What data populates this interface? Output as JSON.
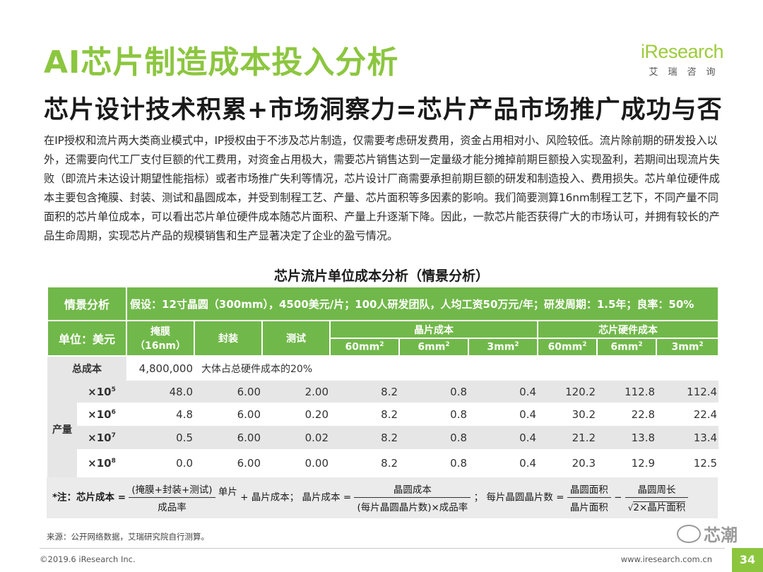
{
  "header": {
    "title": "AI芯片制造成本投入分析",
    "subtitle": "芯片设计技术积累+市场洞察力=芯片产品市场推广成功与否",
    "logo_main": "iResearch",
    "logo_sub": "艾瑞咨询"
  },
  "paragraph": "在IP授权和流片两大类商业模式中，IP授权由于不涉及芯片制造，仅需要考虑研发费用，资金占用相对小、风险较低。流片除前期的研发投入以外，还需要向代工厂支付巨额的代工费用，对资金占用极大，需要芯片销售达到一定量级才能分摊掉前期巨额投入实现盈利，若期间出现流片失败（即流片未达设计期望性能指标）或者市场推广失利等情况，芯片设计厂商需要承担前期巨额的研发和制造投入、费用损失。芯片单位硬件成本主要包含掩膜、封装、测试和晶圆成本，并受到制程工艺、产量、芯片面积等多因素的影响。我们简要测算16nm制程工艺下，不同产量不同面积的芯片单位成本，可以看出芯片单位硬件成本随芯片面积、产量上升逐渐下降。因此，一款芯片能否获得广大的市场认可，并拥有较长的产品生命周期，实现芯片产品的规模销售和生产显著决定了企业的盈亏情况。",
  "table": {
    "title": "芯片流片单位成本分析（情景分析）",
    "scenario_label": "情景分析",
    "assumption": "假设：12寸晶圆（300mm），4500美元/片；100人研发团队，人均工资50万元/年；研发周期：1.5年；良率：50%",
    "unit_label": "单位：美元",
    "col_mask": "掩膜\n（16nm）",
    "col_mask_line1": "掩膜",
    "col_mask_line2": "（16nm）",
    "col_package": "封装",
    "col_test": "测试",
    "col_wafer_cost": "晶片成本",
    "col_hw_cost": "芯片硬件成本",
    "areas": [
      "60mm",
      "6mm",
      "3mm",
      "60mm",
      "6mm",
      "3mm"
    ],
    "area_sup": "2",
    "total_label": "总成本",
    "total_value": "4,800,000",
    "total_note": "大体占总硬件成本的20%",
    "volume_label": "产量",
    "rows": [
      {
        "volume": "×10",
        "exp": "5",
        "values": [
          "48.0",
          "6.00",
          "2.00",
          "8.2",
          "0.8",
          "0.4",
          "120.2",
          "112.8",
          "112.4"
        ]
      },
      {
        "volume": "×10",
        "exp": "6",
        "values": [
          "4.8",
          "6.00",
          "0.20",
          "8.2",
          "0.8",
          "0.4",
          "30.2",
          "22.8",
          "22.4"
        ]
      },
      {
        "volume": "×10",
        "exp": "7",
        "values": [
          "0.5",
          "6.00",
          "0.02",
          "8.2",
          "0.8",
          "0.4",
          "21.2",
          "13.8",
          "13.4"
        ]
      },
      {
        "volume": "×10",
        "exp": "8",
        "values": [
          "0.0",
          "6.00",
          "0.00",
          "8.2",
          "0.8",
          "0.4",
          "20.3",
          "12.9",
          "12.5"
        ]
      }
    ]
  },
  "formula": {
    "note_label": "*注：芯片成本 =",
    "f1_num": "(掩膜+封装+测试)",
    "f1_den": "成品率",
    "f1_tail": "单片",
    "plus": "+ 晶片成本；",
    "wafer_label": "晶片成本 =",
    "f2_num": "晶圆成本",
    "f2_den": "(每片晶圆晶片数)×成品率",
    "sep": "；",
    "per_wafer_label": "每片晶圆晶片数 =",
    "f3_num": "晶圆面积",
    "f3_den": "晶片面积",
    "minus": "−",
    "f4_num": "晶圆周长",
    "f4_den": "2×晶片面积"
  },
  "footer": {
    "source": "来源：公开网络数据，艾瑞研究院自行测算。",
    "copyright": "©2019.6 iResearch Inc.",
    "website": "www.iresearch.com.cn",
    "page": "34",
    "watermark": "芯潮"
  }
}
